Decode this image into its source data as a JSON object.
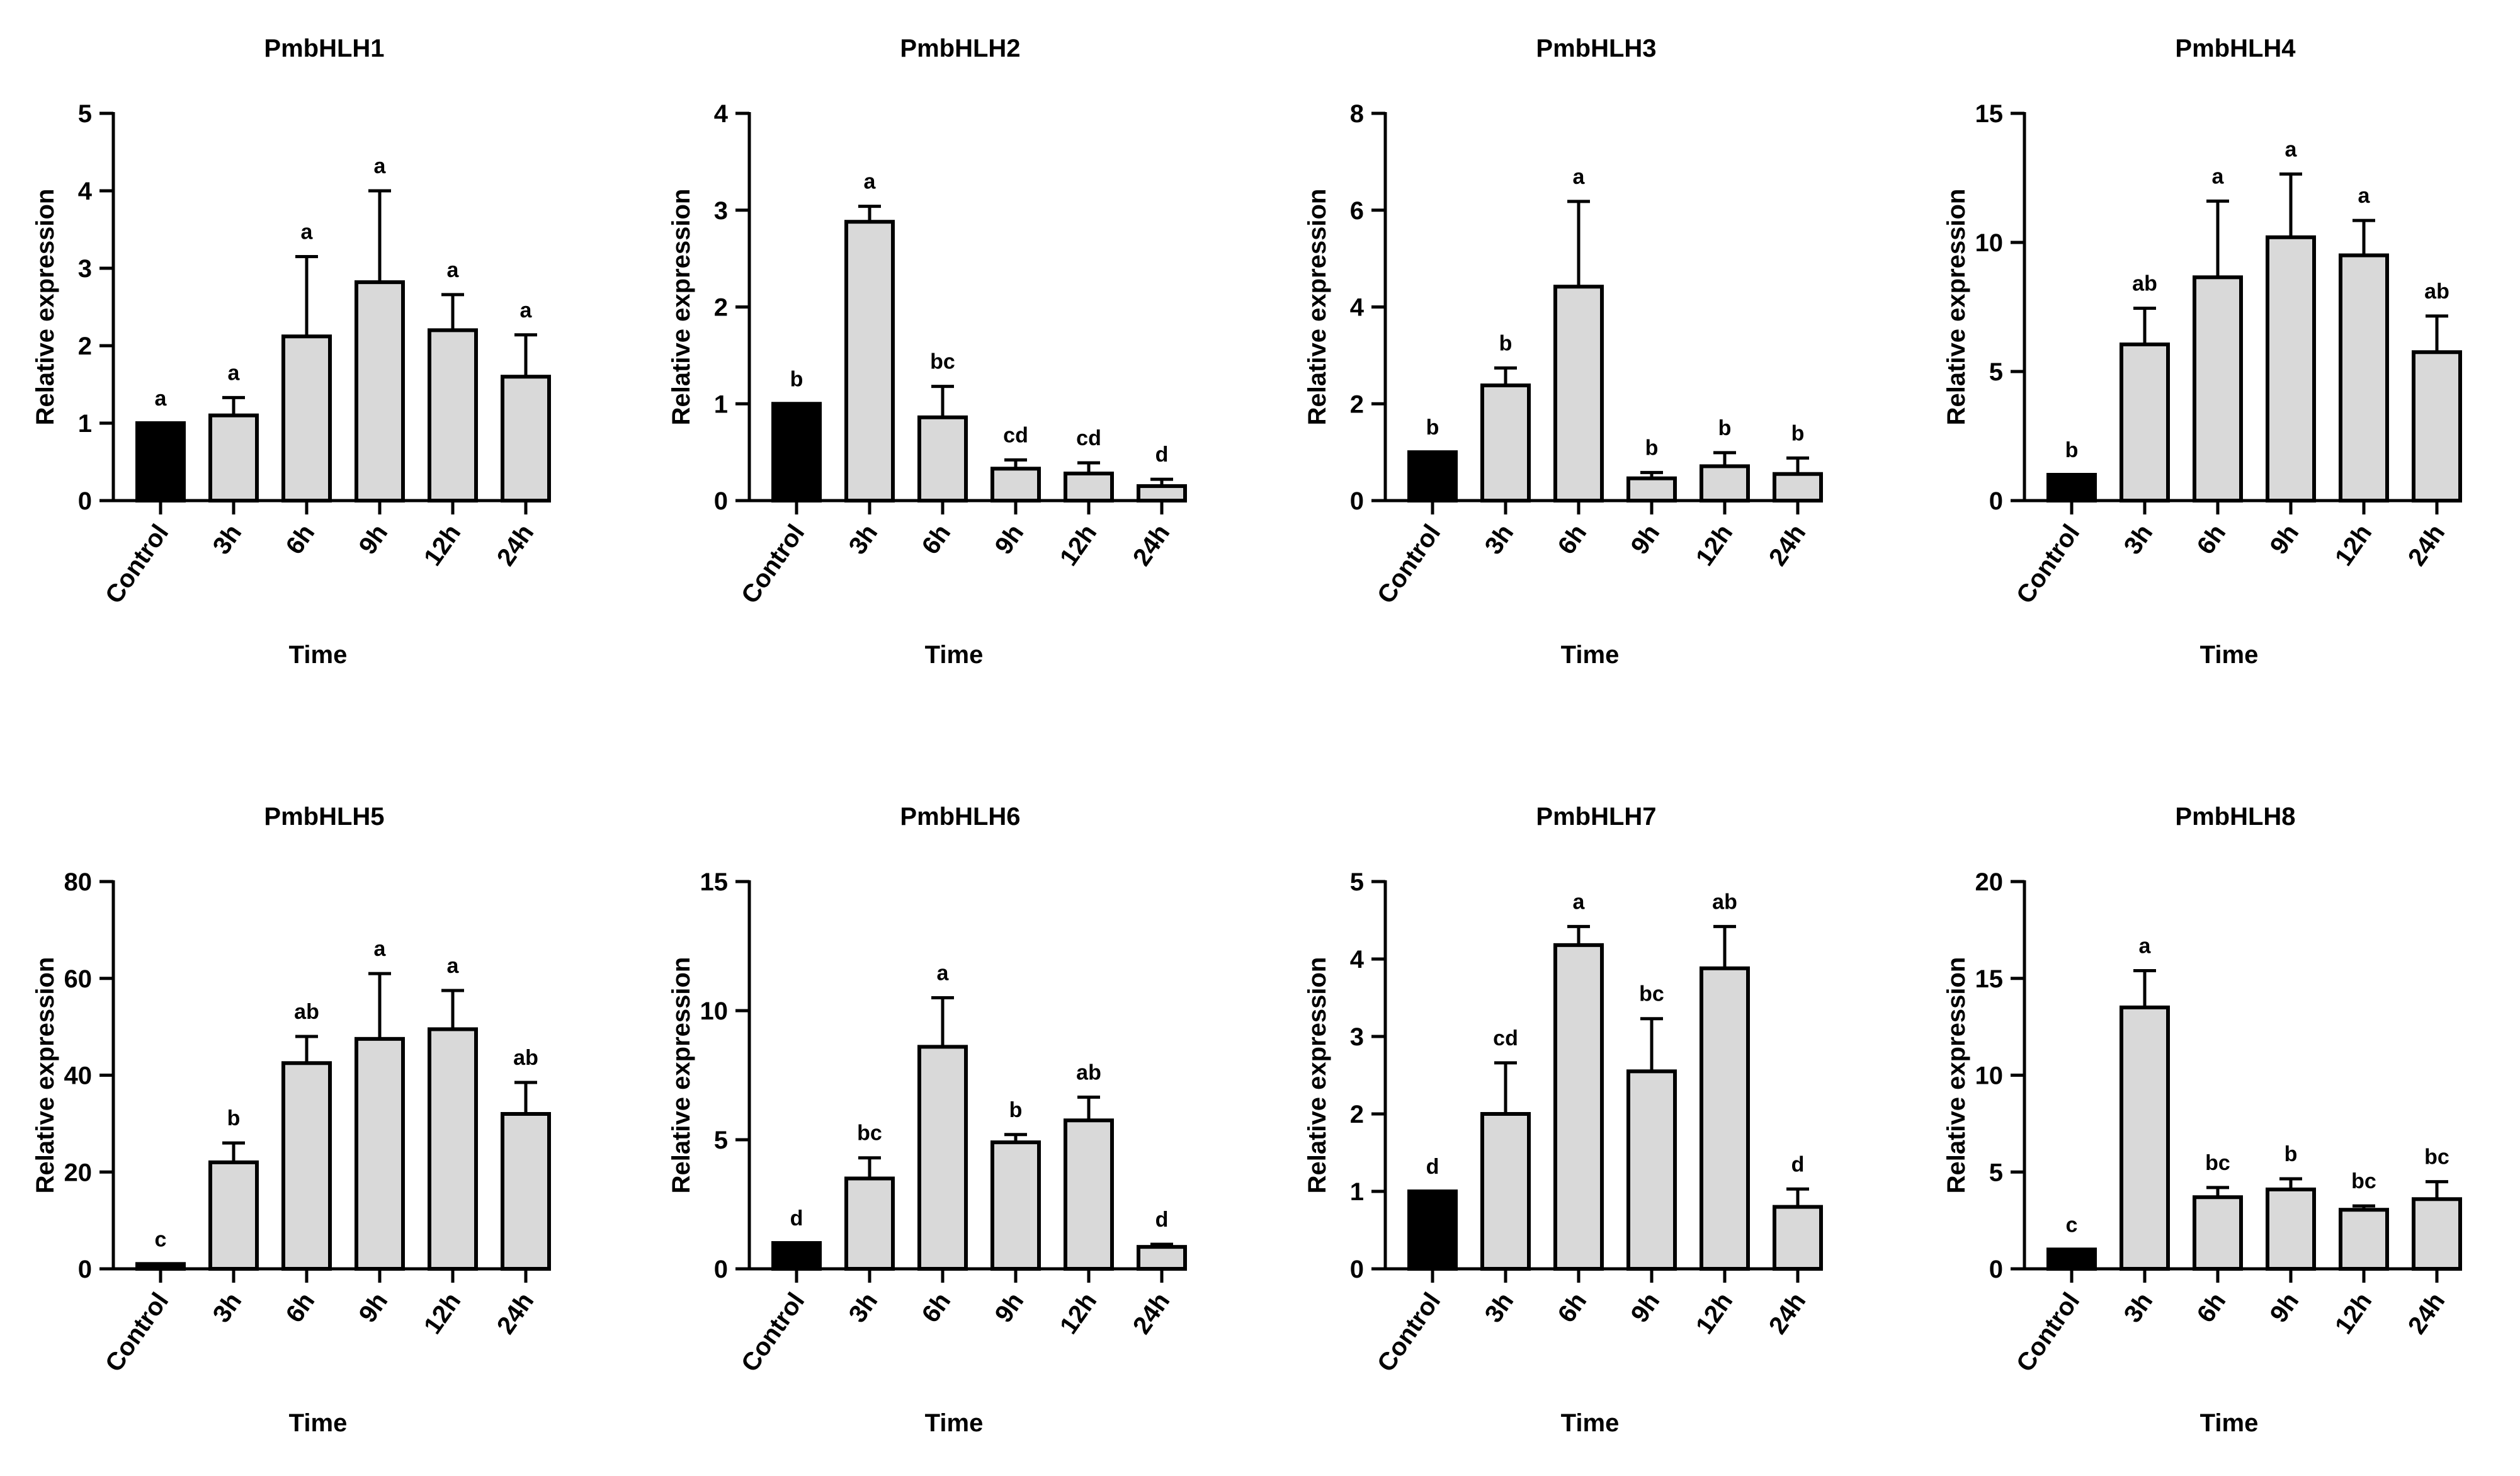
{
  "figure": {
    "background": "#ffffff",
    "control_color": "#000000",
    "treatment_color": "#d9d9d9",
    "edge_color": "#000000"
  },
  "chart_data": [
    {
      "type": "bar",
      "title": "PmbHLH1",
      "xlabel": "Time",
      "ylabel": "Relative expression",
      "categories": [
        "Control",
        "3h",
        "6h",
        "9h",
        "12h",
        "24h"
      ],
      "values": [
        1.0,
        1.1,
        2.12,
        2.82,
        2.2,
        1.6
      ],
      "errors": [
        0,
        0.23,
        1.03,
        1.18,
        0.46,
        0.54
      ],
      "letters": [
        "a",
        "a",
        "a",
        "a",
        "a",
        "a"
      ],
      "ylim": [
        0,
        5
      ],
      "yticks": [
        0,
        1,
        2,
        3,
        4,
        5
      ]
    },
    {
      "type": "bar",
      "title": "PmbHLH2",
      "xlabel": "Time",
      "ylabel": "Relative expression",
      "categories": [
        "Control",
        "3h",
        "6h",
        "9h",
        "12h",
        "24h"
      ],
      "values": [
        1.0,
        2.88,
        0.86,
        0.33,
        0.28,
        0.15
      ],
      "errors": [
        0,
        0.16,
        0.32,
        0.09,
        0.11,
        0.07
      ],
      "letters": [
        "b",
        "a",
        "bc",
        "cd",
        "cd",
        "d"
      ],
      "ylim": [
        0,
        4
      ],
      "yticks": [
        0,
        1,
        2,
        3,
        4
      ]
    },
    {
      "type": "bar",
      "title": "PmbHLH3",
      "xlabel": "Time",
      "ylabel": "Relative expression",
      "categories": [
        "Control",
        "3h",
        "6h",
        "9h",
        "12h",
        "24h"
      ],
      "values": [
        1.0,
        2.38,
        4.42,
        0.46,
        0.71,
        0.55
      ],
      "errors": [
        0,
        0.36,
        1.76,
        0.12,
        0.28,
        0.33
      ],
      "letters": [
        "b",
        "b",
        "a",
        "b",
        "b",
        "b"
      ],
      "ylim": [
        0,
        8
      ],
      "yticks": [
        0,
        2,
        4,
        6,
        8
      ]
    },
    {
      "type": "bar",
      "title": "PmbHLH4",
      "xlabel": "Time",
      "ylabel": "Relative expression",
      "categories": [
        "Control",
        "3h",
        "6h",
        "9h",
        "12h",
        "24h"
      ],
      "values": [
        1.0,
        6.05,
        8.65,
        10.2,
        9.5,
        5.75
      ],
      "errors": [
        0,
        1.4,
        2.95,
        2.45,
        1.35,
        1.4
      ],
      "letters": [
        "b",
        "ab",
        "a",
        "a",
        "a",
        "ab"
      ],
      "ylim": [
        0,
        15
      ],
      "yticks": [
        0,
        5,
        10,
        15
      ]
    },
    {
      "type": "bar",
      "title": "PmbHLH5",
      "xlabel": "Time",
      "ylabel": "Relative expression",
      "categories": [
        "Control",
        "3h",
        "6h",
        "9h",
        "12h",
        "24h"
      ],
      "values": [
        1.0,
        22.0,
        42.5,
        47.5,
        49.5,
        32.0
      ],
      "errors": [
        0,
        4.0,
        5.5,
        13.5,
        8.0,
        6.5
      ],
      "letters": [
        "c",
        "b",
        "ab",
        "a",
        "a",
        "ab"
      ],
      "ylim": [
        0,
        80
      ],
      "yticks": [
        0,
        20,
        40,
        60,
        80
      ]
    },
    {
      "type": "bar",
      "title": "PmbHLH6",
      "xlabel": "Time",
      "ylabel": "Relative expression",
      "categories": [
        "Control",
        "3h",
        "6h",
        "9h",
        "12h",
        "24h"
      ],
      "values": [
        1.0,
        3.5,
        8.6,
        4.9,
        5.75,
        0.85
      ],
      "errors": [
        0,
        0.8,
        1.9,
        0.3,
        0.9,
        0.1
      ],
      "letters": [
        "d",
        "bc",
        "a",
        "b",
        "ab",
        "d"
      ],
      "ylim": [
        0,
        15
      ],
      "yticks": [
        0,
        5,
        10,
        15
      ]
    },
    {
      "type": "bar",
      "title": "PmbHLH7",
      "xlabel": "Time",
      "ylabel": "Relative expression",
      "categories": [
        "Control",
        "3h",
        "6h",
        "9h",
        "12h",
        "24h"
      ],
      "values": [
        1.0,
        2.0,
        4.18,
        2.55,
        3.88,
        0.8
      ],
      "errors": [
        0,
        0.66,
        0.24,
        0.68,
        0.54,
        0.23
      ],
      "letters": [
        "d",
        "cd",
        "a",
        "bc",
        "ab",
        "d"
      ],
      "ylim": [
        0,
        5
      ],
      "yticks": [
        0,
        1,
        2,
        3,
        4,
        5
      ]
    },
    {
      "type": "bar",
      "title": "PmbHLH8",
      "xlabel": "Time",
      "ylabel": "Relative expression",
      "categories": [
        "Control",
        "3h",
        "6h",
        "9h",
        "12h",
        "24h"
      ],
      "values": [
        1.0,
        13.5,
        3.7,
        4.1,
        3.05,
        3.6
      ],
      "errors": [
        0,
        1.9,
        0.5,
        0.55,
        0.2,
        0.9
      ],
      "letters": [
        "c",
        "a",
        "bc",
        "b",
        "bc",
        "bc"
      ],
      "ylim": [
        0,
        20
      ],
      "yticks": [
        0,
        5,
        10,
        15,
        20
      ]
    }
  ]
}
